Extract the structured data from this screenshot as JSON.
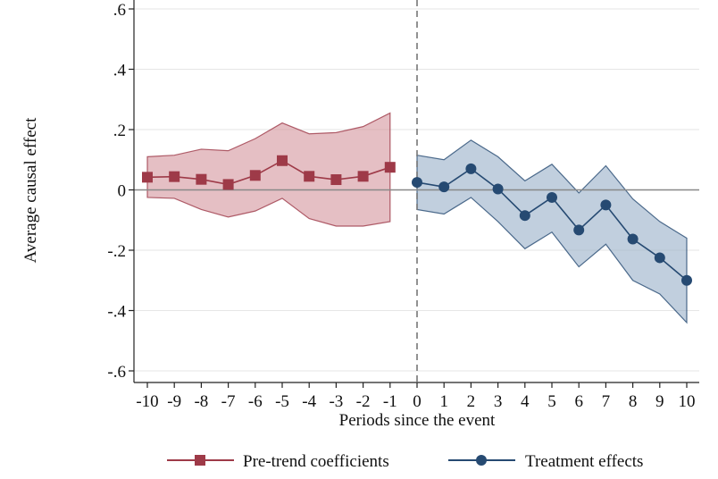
{
  "chart_data": {
    "type": "line",
    "title": "",
    "xlabel": "Periods since the event",
    "ylabel": "Average causal effect",
    "xlim": [
      -10,
      10
    ],
    "ylim": [
      -0.63,
      0.6
    ],
    "x_ticks": [
      -10,
      -9,
      -8,
      -7,
      -6,
      -5,
      -4,
      -3,
      -2,
      -1,
      0,
      1,
      2,
      3,
      4,
      5,
      6,
      7,
      8,
      9,
      10
    ],
    "x_tick_labels": [
      "-10",
      "-9",
      "-8",
      "-7",
      "-6",
      "-5",
      "-4",
      "-3",
      "-2",
      "-1",
      "0",
      "1",
      "2",
      "3",
      "4",
      "5",
      "6",
      "7",
      "8",
      "9",
      "10"
    ],
    "y_ticks": [
      0.6,
      0.4,
      0.2,
      0,
      -0.2,
      -0.4,
      -0.6
    ],
    "y_tick_labels": [
      ".6",
      ".4",
      ".2",
      "0",
      "-.2",
      "-.4",
      "-.6"
    ],
    "grid": true,
    "event_line_x": 0,
    "legend_position": "bottom",
    "series": [
      {
        "name": "Pre-trend coefficients",
        "marker": "square",
        "color": "#9e3a48",
        "band_color": "#cf8a93",
        "x": [
          -10,
          -9,
          -8,
          -7,
          -6,
          -5,
          -4,
          -3,
          -2,
          -1
        ],
        "values": [
          0.042,
          0.044,
          0.035,
          0.018,
          0.048,
          0.097,
          0.045,
          0.034,
          0.045,
          0.075
        ],
        "ci_upper": [
          0.11,
          0.115,
          0.135,
          0.13,
          0.17,
          0.222,
          0.186,
          0.19,
          0.21,
          0.255
        ],
        "ci_lower": [
          -0.025,
          -0.028,
          -0.065,
          -0.09,
          -0.07,
          -0.028,
          -0.095,
          -0.12,
          -0.12,
          -0.105
        ]
      },
      {
        "name": "Treatment effects",
        "marker": "circle",
        "color": "#264a72",
        "band_color": "#8ea7c2",
        "x": [
          0,
          1,
          2,
          3,
          4,
          5,
          6,
          7,
          8,
          9,
          10
        ],
        "values": [
          0.025,
          0.01,
          0.07,
          0.003,
          -0.085,
          -0.025,
          -0.133,
          -0.05,
          -0.163,
          -0.225,
          -0.3
        ],
        "ci_upper": [
          0.115,
          0.1,
          0.165,
          0.11,
          0.03,
          0.085,
          -0.01,
          0.08,
          -0.03,
          -0.105,
          -0.16
        ],
        "ci_lower": [
          -0.065,
          -0.08,
          -0.025,
          -0.105,
          -0.195,
          -0.14,
          -0.255,
          -0.18,
          -0.3,
          -0.345,
          -0.44
        ]
      }
    ]
  }
}
